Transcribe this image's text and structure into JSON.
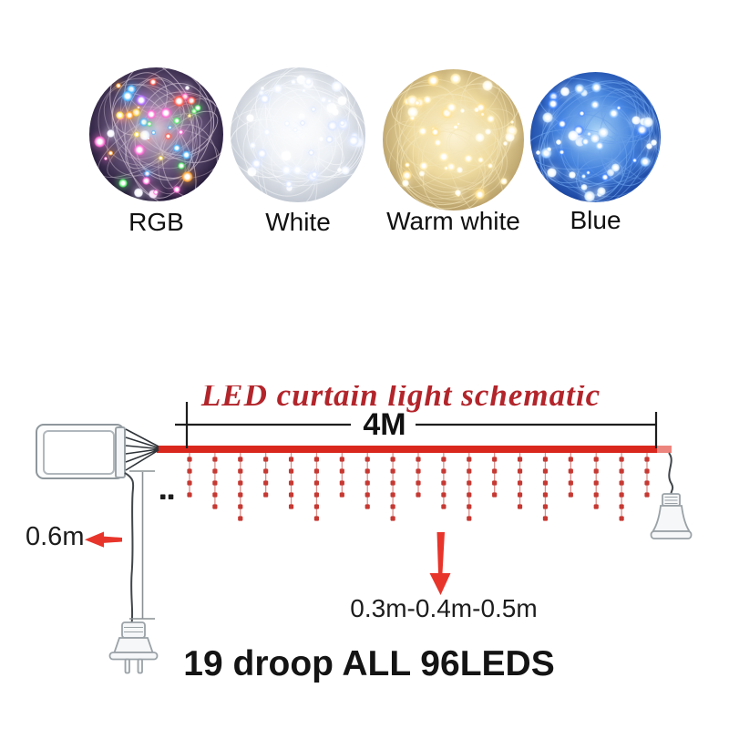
{
  "variants": [
    {
      "label": "RGB",
      "base": [
        "#dcc8d8",
        "#6e5a80",
        "#241a38",
        "#070510"
      ],
      "wire": "#cfc0d2",
      "lights": [
        "#ff5a4d",
        "#ffa133",
        "#ffe14d",
        "#57e86b",
        "#4db5ff",
        "#b06bff",
        "#ff6bd4",
        "#f2f2ff"
      ]
    },
    {
      "label": "White",
      "base": [
        "#ffffff",
        "#eef1f5",
        "#c2c8d2",
        "#8e95a3"
      ],
      "wire": "#f8fafc",
      "lights": [
        "#ffffff",
        "#eef4ff",
        "#dfe9ff"
      ]
    },
    {
      "label": "Warm white",
      "base": [
        "#fdf4d7",
        "#eeda9f",
        "#b89f69",
        "#3a2f16"
      ],
      "wire": "#f3e6bb",
      "lights": [
        "#fff8dd",
        "#ffedb3",
        "#ffe291"
      ]
    },
    {
      "label": "Blue",
      "base": [
        "#a6d2f7",
        "#4583dd",
        "#1b45a0",
        "#061027"
      ],
      "wire": "#6aa0ea",
      "lights": [
        "#cfe7ff",
        "#8ec2ff",
        "#4d8dff",
        "#eaf5ff"
      ]
    }
  ],
  "schematic": {
    "title": "LED curtain light schematic",
    "width_label": "4M",
    "lead_length_label": "0.6m",
    "droop_length_label": "0.3m-0.4m-0.5m",
    "caption": "19 droop ALL 96LEDS",
    "droop_count": 19,
    "dots_per_droop_cycle": [
      4,
      5,
      6
    ],
    "colors": {
      "accent_red": "#d9271e",
      "title_red": "#b2252b",
      "arrow_red": "#e8352b",
      "droop_dot_red": "#c63832",
      "outline_gray": "#9aa2a7",
      "text_black": "#141414"
    }
  }
}
